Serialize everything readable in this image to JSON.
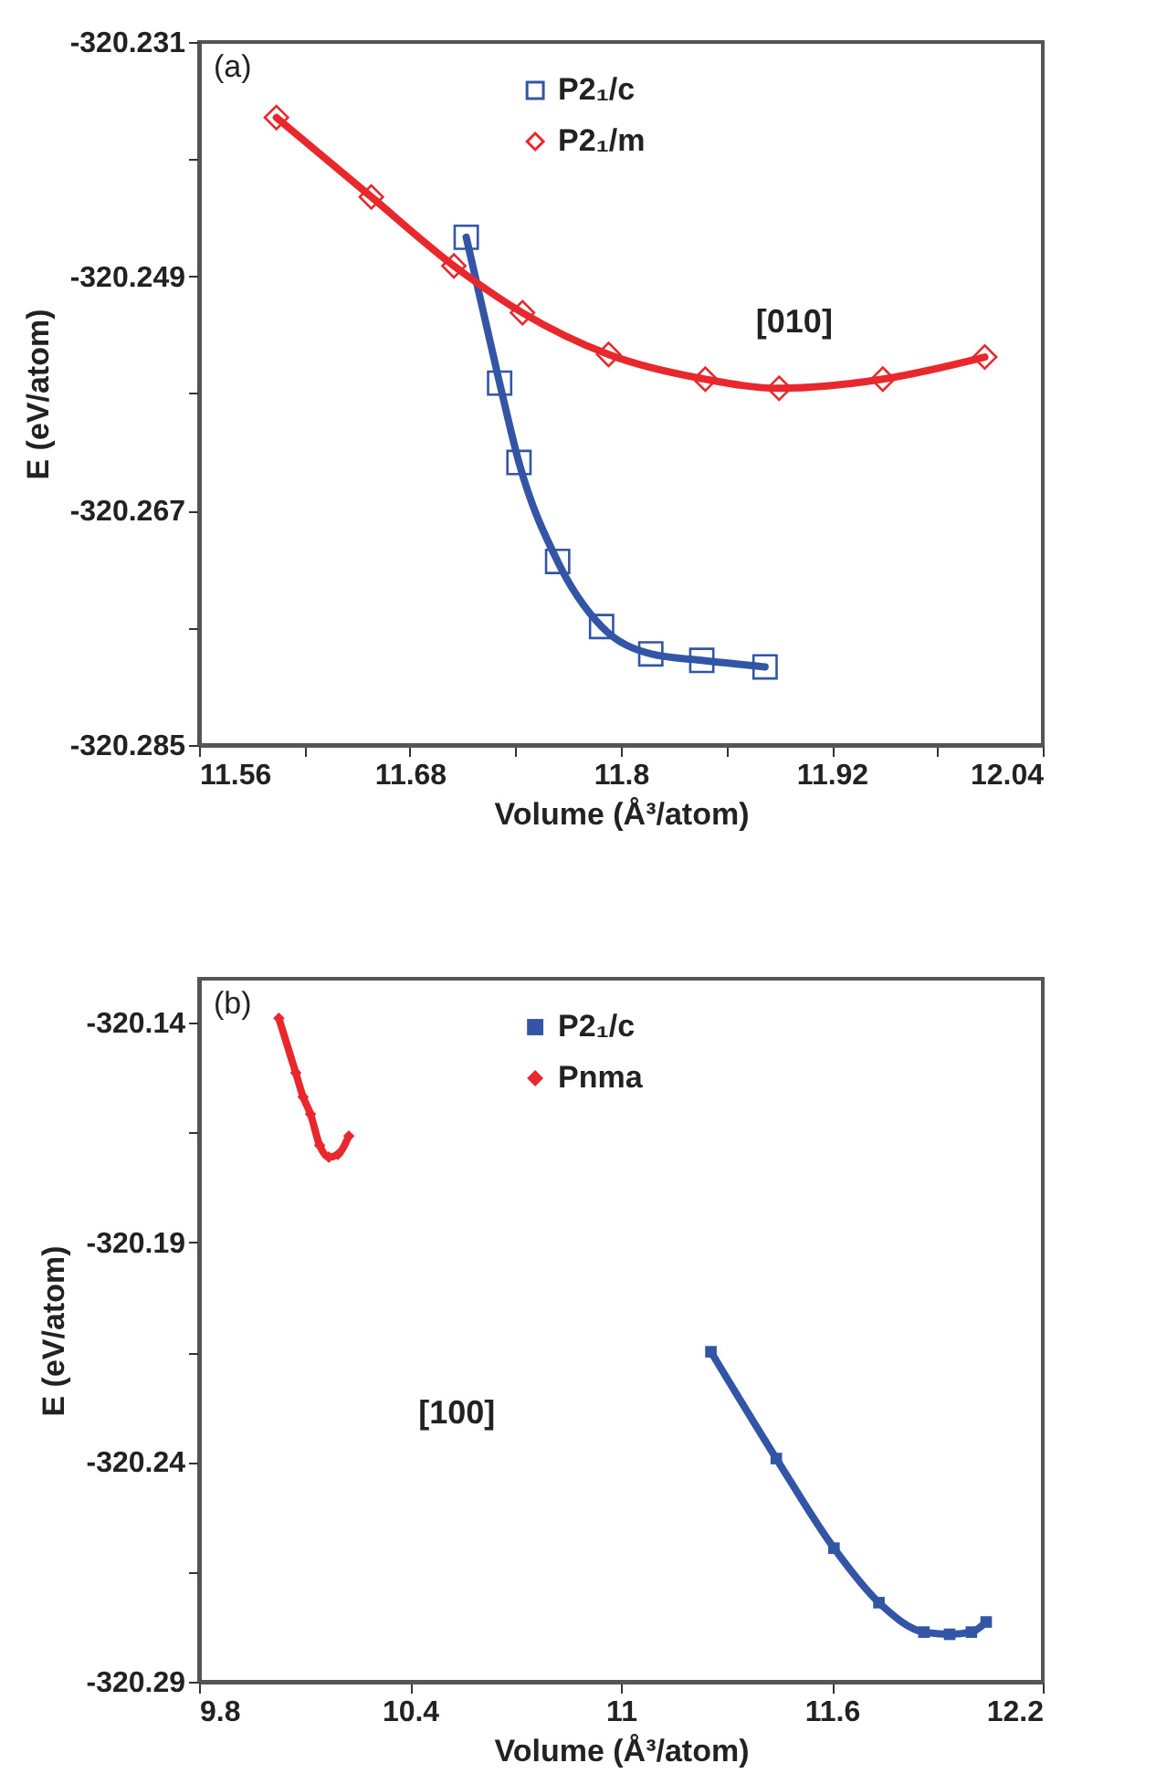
{
  "chart_data": [
    {
      "type": "line",
      "xlabel": "Volume (Å³/atom)",
      "ylabel": "E (eV/atom)",
      "annotations": [
        "(a)",
        "[010]"
      ],
      "xlim": [
        11.56,
        12.04
      ],
      "xticks": [
        11.56,
        {
          "value": 11.62,
          "label": null
        },
        11.68,
        {
          "value": 11.74,
          "label": null
        },
        11.8,
        {
          "value": 11.86,
          "label": null
        },
        11.92,
        {
          "value": 11.98,
          "label": null
        },
        12.04
      ],
      "ylim": [
        -320.285,
        -320.231
      ],
      "yticks": [
        -320.285,
        {
          "value": -320.276,
          "label": null
        },
        -320.267,
        {
          "value": -320.258,
          "label": null
        },
        -320.249,
        {
          "value": -320.24,
          "label": null
        },
        -320.231
      ],
      "legend": "top",
      "grid": false,
      "series": [
        {
          "name": "P2₁/c",
          "color": "#3355a5",
          "marker": "square",
          "x": [
            11.712,
            11.731,
            11.742,
            11.764,
            11.789,
            11.817,
            11.846,
            11.882
          ],
          "values": [
            -320.246,
            -320.2572,
            -320.2633,
            -320.2709,
            -320.2759,
            -320.278,
            -320.2785,
            -320.279
          ]
        },
        {
          "name": "P2₁/m",
          "color": "#e8282d",
          "marker": "diamond",
          "x": [
            11.604,
            11.658,
            11.705,
            11.744,
            11.793,
            11.848,
            11.89,
            11.949,
            12.007
          ],
          "values": [
            -320.2368,
            -320.2429,
            -320.2482,
            -320.2518,
            -320.255,
            -320.2569,
            -320.2576,
            -320.2569,
            -320.2552
          ]
        }
      ]
    },
    {
      "type": "line",
      "xlabel": "Volume (Å³/atom)",
      "ylabel": "E (eV/atom)",
      "annotations": [
        "(b)",
        "[100]"
      ],
      "xlim": [
        9.8,
        12.2
      ],
      "xticks": [
        9.8,
        10.4,
        11,
        11.6,
        12.2
      ],
      "ylim": [
        -320.29,
        -320.13
      ],
      "yticks": [
        -320.29,
        {
          "value": -320.265,
          "label": null
        },
        -320.24,
        {
          "value": -320.215,
          "label": null
        },
        -320.19,
        {
          "value": -320.165,
          "label": null
        },
        -320.14
      ],
      "legend": "top",
      "grid": false,
      "series": [
        {
          "name": "P2₁/c",
          "color": "#3355a5",
          "marker": "square",
          "x": [
            11.256,
            11.442,
            11.606,
            11.734,
            11.862,
            11.935,
            11.997,
            12.039
          ],
          "values": [
            -320.2149,
            -320.2392,
            -320.2596,
            -320.272,
            -320.2787,
            -320.2792,
            -320.2787,
            -320.2764
          ]
        },
        {
          "name": "Pnma",
          "color": "#e8282d",
          "marker": "diamond",
          "x": [
            10.027,
            10.075,
            10.096,
            10.117,
            10.143,
            10.169,
            10.195,
            10.226
          ],
          "values": [
            -320.139,
            -320.1514,
            -320.1569,
            -320.1608,
            -320.1679,
            -320.1706,
            -320.17,
            -320.1658
          ]
        }
      ]
    }
  ]
}
